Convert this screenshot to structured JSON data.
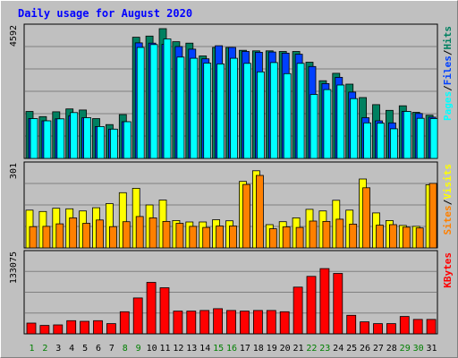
{
  "title": "Daily usage for August 2020",
  "colors": {
    "background": "#c0c0c0",
    "plot_bg": "#c0c0c0",
    "grid": "#808080",
    "pages": "#00ffff",
    "files": "#0040ff",
    "hits": "#008060",
    "sites": "#ff8000",
    "visits": "#ffff00",
    "kbytes": "#ff0000",
    "weekend_day": "#008000",
    "weekday": "#000000"
  },
  "chart_data": [
    {
      "type": "bar",
      "title": "Daily usage for August 2020",
      "categories": [
        "1",
        "2",
        "3",
        "4",
        "5",
        "6",
        "7",
        "8",
        "9",
        "10",
        "11",
        "12",
        "13",
        "14",
        "15",
        "16",
        "17",
        "18",
        "19",
        "20",
        "21",
        "22",
        "23",
        "24",
        "25",
        "26",
        "27",
        "28",
        "29",
        "30",
        "31"
      ],
      "weekend_days": [
        "1",
        "2",
        "8",
        "9",
        "15",
        "16",
        "22",
        "23",
        "29",
        "30"
      ],
      "ymax_label": "4592",
      "ylim": [
        0,
        4592
      ],
      "right_label": {
        "parts": [
          "Pages",
          "/",
          "Files",
          "/",
          "Hits"
        ]
      },
      "series": [
        {
          "name": "Hits",
          "values": [
            1650,
            1470,
            1640,
            1740,
            1700,
            1400,
            1190,
            1540,
            4260,
            4300,
            4560,
            4100,
            4050,
            3600,
            3900,
            3900,
            3800,
            3780,
            3780,
            3760,
            3760,
            3380,
            2730,
            2990,
            2610,
            2140,
            1890,
            1690,
            1850,
            1620,
            1520
          ]
        },
        {
          "name": "Files",
          "values": [
            1400,
            1320,
            1390,
            1500,
            1430,
            1120,
            1030,
            1290,
            4060,
            4050,
            4010,
            3930,
            3840,
            3500,
            3960,
            3900,
            3760,
            3730,
            3740,
            3700,
            3660,
            3230,
            2630,
            2850,
            2330,
            1430,
            1320,
            1250,
            1650,
            1580,
            1450
          ]
        },
        {
          "name": "Pages",
          "values": [
            1400,
            1320,
            1390,
            1610,
            1430,
            1120,
            1030,
            1290,
            3900,
            4000,
            4200,
            3560,
            3520,
            3350,
            3320,
            3520,
            3340,
            3040,
            3370,
            2980,
            3340,
            2250,
            2420,
            2580,
            2100,
            1250,
            1240,
            1040,
            1650,
            1410,
            1400
          ]
        }
      ]
    },
    {
      "type": "bar",
      "categories": [
        "1",
        "2",
        "3",
        "4",
        "5",
        "6",
        "7",
        "8",
        "9",
        "10",
        "11",
        "12",
        "13",
        "14",
        "15",
        "16",
        "17",
        "18",
        "19",
        "20",
        "21",
        "22",
        "23",
        "24",
        "25",
        "26",
        "27",
        "28",
        "29",
        "30",
        "31"
      ],
      "ymax_label": "301",
      "ylim": [
        0,
        301
      ],
      "right_label": {
        "parts": [
          "Sites",
          "/",
          "Visits"
        ]
      },
      "series": [
        {
          "name": "Visits",
          "values": [
            138,
            133,
            145,
            143,
            135,
            147,
            162,
            202,
            218,
            157,
            175,
            100,
            95,
            95,
            103,
            99,
            243,
            282,
            85,
            96,
            110,
            141,
            135,
            174,
            138,
            252,
            128,
            100,
            82,
            79,
            231
          ]
        },
        {
          "name": "Sites",
          "values": [
            78,
            79,
            88,
            110,
            90,
            102,
            78,
            96,
            115,
            110,
            97,
            90,
            79,
            75,
            80,
            80,
            232,
            265,
            70,
            77,
            75,
            98,
            97,
            105,
            87,
            220,
            83,
            85,
            76,
            73,
            236
          ]
        }
      ]
    },
    {
      "type": "bar",
      "categories": [
        "1",
        "2",
        "3",
        "4",
        "5",
        "6",
        "7",
        "8",
        "9",
        "10",
        "11",
        "12",
        "13",
        "14",
        "15",
        "16",
        "17",
        "18",
        "19",
        "20",
        "21",
        "22",
        "23",
        "24",
        "25",
        "26",
        "27",
        "28",
        "29",
        "30",
        "31"
      ],
      "ymax_label": "133075",
      "ylim": [
        0,
        133075
      ],
      "right_label": {
        "parts": [
          "KBytes"
        ]
      },
      "series": [
        {
          "name": "KBytes",
          "values": [
            18000,
            14000,
            15000,
            22000,
            21000,
            22000,
            17000,
            37000,
            60000,
            86000,
            77000,
            38000,
            38000,
            39000,
            42000,
            39000,
            38000,
            39000,
            39000,
            37000,
            78000,
            96000,
            109000,
            101000,
            31000,
            20000,
            17000,
            17000,
            29000,
            24000,
            24000
          ]
        }
      ]
    }
  ]
}
